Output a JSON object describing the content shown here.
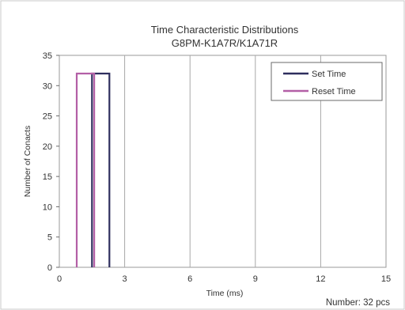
{
  "chart_data": {
    "type": "line",
    "title": "Time Characteristic Distributions",
    "subtitle": "G8PM-K1A7R/K1A71R",
    "xlabel": "Time (ms)",
    "ylabel": "Number of Conacts",
    "xlim": [
      0,
      15
    ],
    "ylim": [
      0,
      35
    ],
    "xticks": [
      0,
      3,
      6,
      9,
      12,
      15
    ],
    "yticks": [
      0,
      5,
      10,
      15,
      20,
      25,
      30,
      35
    ],
    "grid": "vertical",
    "legend_position": "top-right",
    "series": [
      {
        "name": "Set Time",
        "color": "#2e2e5e",
        "x": [
          1.5,
          1.5,
          2.3,
          2.3
        ],
        "y": [
          0,
          32,
          32,
          0
        ]
      },
      {
        "name": "Reset Time",
        "color": "#b35fa6",
        "x": [
          0.8,
          0.8,
          1.6,
          1.6
        ],
        "y": [
          0,
          32,
          32,
          0
        ]
      }
    ],
    "annotation": "Number: 32 pcs"
  }
}
